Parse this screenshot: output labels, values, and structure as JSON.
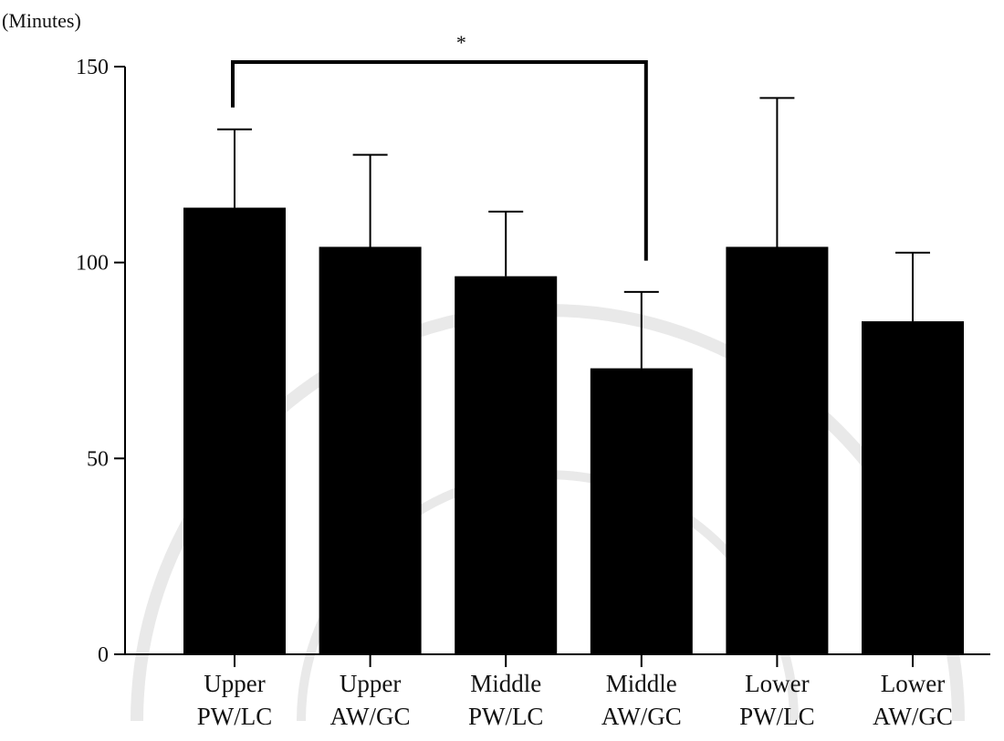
{
  "colors": {
    "bar": "#000000",
    "axis": "#000000",
    "text": "#111111",
    "watermark": "#e9e9e9"
  },
  "chart_data": {
    "type": "bar",
    "title": "",
    "xlabel": "",
    "ylabel": "(Minutes)",
    "ylim": [
      0,
      150
    ],
    "yticks": [
      0,
      50,
      100,
      150
    ],
    "grid": false,
    "categories": [
      [
        "Upper",
        "PW/LC"
      ],
      [
        "Upper",
        "AW/GC"
      ],
      [
        "Middle",
        "PW/LC"
      ],
      [
        "Middle",
        "AW/GC"
      ],
      [
        "Lower",
        "PW/LC"
      ],
      [
        "Lower",
        "AW/GC"
      ]
    ],
    "values": [
      114,
      104,
      96.5,
      73,
      104,
      85
    ],
    "error_upper": [
      134,
      127.5,
      113,
      92.5,
      142,
      102.5
    ],
    "significance": [
      {
        "from": 0,
        "to": 3,
        "label": "*"
      }
    ]
  }
}
